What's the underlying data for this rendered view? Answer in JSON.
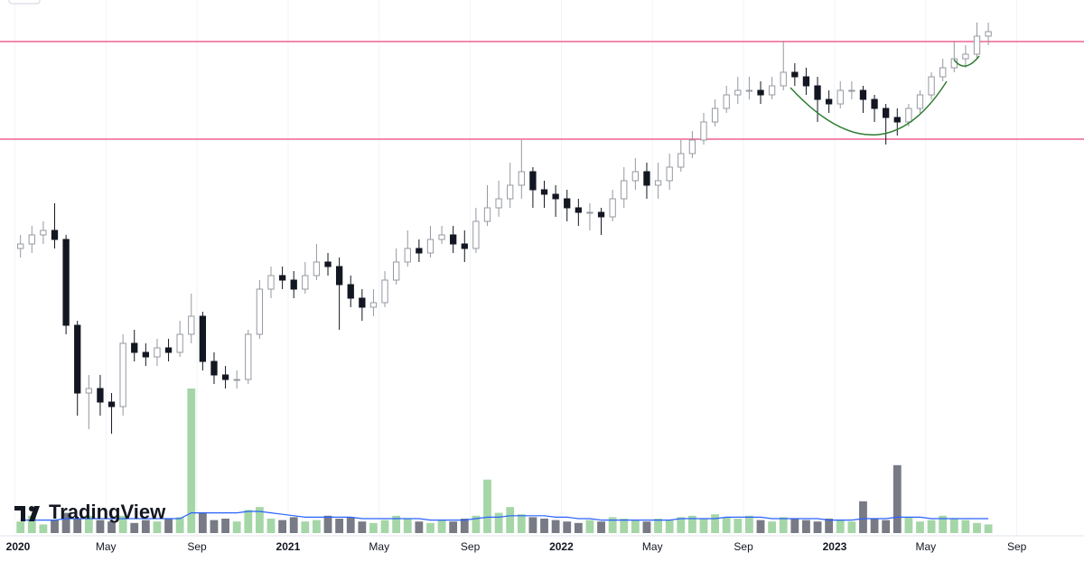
{
  "chart_data": {
    "type": "candlestick",
    "brand": "TradingView",
    "xlim": [
      -1.8,
      93.4
    ],
    "xticks": [
      {
        "value": -0.5,
        "label": "2020"
      },
      {
        "value": 7.5,
        "label": "May"
      },
      {
        "value": 15.5,
        "label": "Sep"
      },
      {
        "value": 23.5,
        "label": "2021"
      },
      {
        "value": 31.5,
        "label": "May"
      },
      {
        "value": 39.5,
        "label": "Sep"
      },
      {
        "value": 47.5,
        "label": "2022"
      },
      {
        "value": 55.5,
        "label": "May"
      },
      {
        "value": 63.5,
        "label": "Sep"
      },
      {
        "value": 71.5,
        "label": "2023"
      },
      {
        "value": 79.5,
        "label": "May"
      },
      {
        "value": 87.5,
        "label": "Sep"
      }
    ],
    "ylim": [
      0,
      100
    ],
    "grid": true,
    "up_color": "#ffffff",
    "down_color": "#131722",
    "wick_color": "#9598a1",
    "volume_up_color": "#a5d6a7",
    "volume_down_color": "#787b86",
    "ma_color": "#2962ff",
    "hline_color": "#f06292",
    "hlines": [
      94.8,
      73.2
    ],
    "open": [
      49,
      50,
      52,
      53,
      51,
      32,
      17,
      18,
      15,
      14,
      28,
      26,
      25,
      27,
      26,
      30,
      34,
      24,
      21,
      20,
      20,
      30,
      40,
      43,
      42,
      40,
      43,
      46,
      45,
      41,
      38,
      36,
      37,
      42,
      46,
      49,
      48,
      51,
      52,
      50,
      49,
      55,
      58,
      60,
      63,
      66,
      62,
      61,
      60,
      58,
      57,
      57,
      56,
      60,
      64,
      66,
      63,
      64,
      67,
      70,
      73,
      77,
      80,
      83,
      84,
      84,
      83,
      85,
      88,
      87,
      85,
      82,
      81,
      84,
      84,
      82,
      80,
      78,
      77,
      80,
      83,
      87,
      89,
      91,
      92,
      96
    ],
    "high": [
      52,
      54,
      55,
      59,
      52,
      33,
      21,
      21,
      17,
      30,
      31,
      28,
      29,
      29,
      33,
      39,
      35,
      26,
      23,
      22,
      31,
      42,
      45,
      45,
      44,
      46,
      50,
      48,
      47,
      43,
      40,
      40,
      44,
      49,
      53,
      51,
      54,
      54,
      54,
      53,
      58,
      63,
      64,
      68,
      73,
      67,
      64,
      63,
      62,
      60,
      59,
      58,
      62,
      67,
      69,
      68,
      68,
      70,
      73,
      75,
      79,
      82,
      85,
      87,
      87,
      86,
      87,
      95,
      90,
      89,
      87,
      84,
      86,
      86,
      85,
      83,
      81,
      80,
      81,
      84,
      88,
      91,
      95,
      94,
      99,
      99
    ],
    "low": [
      47,
      48,
      50,
      49,
      30,
      12,
      9,
      12,
      8,
      12,
      24,
      23,
      23,
      24,
      25,
      28,
      22,
      19,
      18,
      18,
      19,
      29,
      38,
      40,
      38,
      39,
      42,
      43,
      31,
      36,
      33,
      34,
      36,
      41,
      45,
      46,
      47,
      50,
      48,
      46,
      48,
      54,
      56,
      58,
      60,
      58,
      58,
      56,
      55,
      54,
      53,
      52,
      55,
      58,
      62,
      60,
      60,
      62,
      66,
      69,
      72,
      76,
      79,
      81,
      82,
      81,
      82,
      84,
      85,
      83,
      77,
      79,
      80,
      82,
      79,
      77,
      72,
      74,
      76,
      79,
      82,
      86,
      88,
      89,
      91,
      94
    ],
    "close": [
      50,
      52,
      53,
      51,
      32,
      17,
      18,
      15,
      14,
      28,
      26,
      25,
      27,
      26,
      30,
      34,
      24,
      21,
      20,
      20,
      30,
      40,
      43,
      42,
      40,
      43,
      46,
      45,
      41,
      38,
      36,
      37,
      42,
      46,
      49,
      48,
      51,
      52,
      50,
      49,
      55,
      58,
      60,
      63,
      66,
      62,
      61,
      60,
      58,
      57,
      57,
      56,
      60,
      64,
      66,
      63,
      64,
      67,
      70,
      73,
      77,
      80,
      83,
      84,
      84,
      83,
      85,
      88,
      87,
      85,
      82,
      81,
      84,
      84,
      82,
      80,
      78,
      77,
      80,
      83,
      87,
      89,
      91,
      92,
      96,
      97
    ],
    "volume_ylim": [
      0,
      100
    ],
    "volume": [
      8,
      12,
      6,
      9,
      14,
      10,
      12,
      9,
      8,
      12,
      7,
      9,
      8,
      10,
      11,
      100,
      14,
      9,
      10,
      8,
      16,
      18,
      10,
      9,
      11,
      8,
      9,
      12,
      10,
      11,
      8,
      7,
      9,
      12,
      10,
      8,
      7,
      9,
      8,
      10,
      12,
      37,
      14,
      18,
      13,
      11,
      10,
      9,
      8,
      7,
      9,
      8,
      11,
      10,
      9,
      8,
      10,
      9,
      11,
      12,
      10,
      13,
      11,
      10,
      12,
      9,
      8,
      11,
      10,
      9,
      8,
      10,
      9,
      8,
      22,
      10,
      9,
      47,
      11,
      8,
      9,
      12,
      10,
      9,
      7,
      6
    ],
    "volume_ma": [
      9,
      9,
      9,
      9,
      10,
      10,
      10,
      10,
      10,
      10,
      10,
      10,
      10,
      10,
      10,
      14,
      14,
      14,
      14,
      14,
      15,
      15,
      14,
      13,
      12,
      11,
      11,
      11,
      11,
      11,
      10,
      10,
      10,
      10,
      10,
      10,
      9,
      9,
      9,
      9,
      10,
      11,
      11,
      12,
      12,
      12,
      12,
      11,
      11,
      10,
      10,
      9,
      9,
      9,
      9,
      9,
      9,
      9,
      10,
      10,
      10,
      10,
      11,
      11,
      11,
      11,
      10,
      10,
      10,
      10,
      10,
      9,
      9,
      9,
      10,
      10,
      10,
      11,
      11,
      11,
      10,
      10,
      10,
      10,
      10,
      10
    ]
  }
}
